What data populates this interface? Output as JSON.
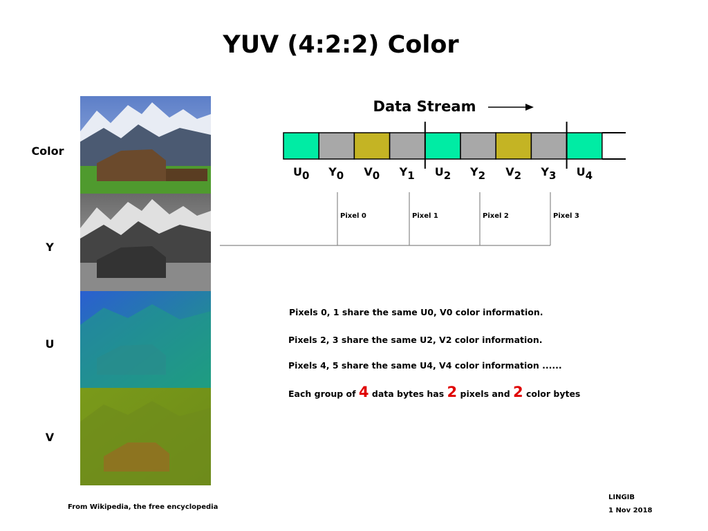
{
  "title": "YUV (4:2:2) Color",
  "side_labels": [
    "Color",
    "Y",
    "U",
    "V"
  ],
  "stream": {
    "title": "Data Stream",
    "cells": [
      {
        "letter": "U",
        "sub": "0"
      },
      {
        "letter": "Y",
        "sub": "0"
      },
      {
        "letter": "V",
        "sub": "0"
      },
      {
        "letter": "Y",
        "sub": "1"
      },
      {
        "letter": "U",
        "sub": "2"
      },
      {
        "letter": "Y",
        "sub": "2"
      },
      {
        "letter": "V",
        "sub": "2"
      },
      {
        "letter": "Y",
        "sub": "3"
      },
      {
        "letter": "U",
        "sub": "4"
      }
    ],
    "pixels": [
      "Pixel 0",
      "Pixel 1",
      "Pixel 2",
      "Pixel 3"
    ]
  },
  "notes": [
    "Pixels 0, 1 share the same U0, V0 color information.",
    "Pixels 2, 3 share the same U2, V2 color information.",
    "Pixels 4, 5 share the same U4, V4 color information ......"
  ],
  "summary": [
    "Each group of",
    "4",
    "data bytes has",
    "2",
    "pixels and",
    "2",
    "color bytes"
  ],
  "source": "From Wikipedia, the free encyclopedia",
  "author": "LINGIB",
  "date": "1 Nov 2018"
}
